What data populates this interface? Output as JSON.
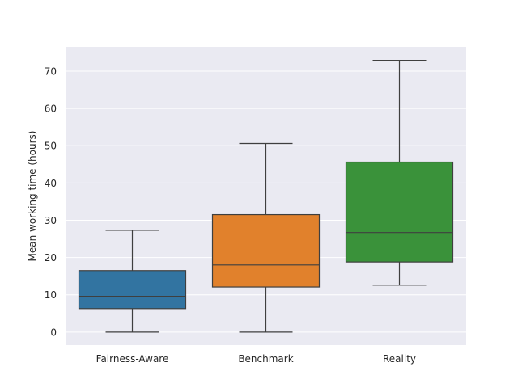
{
  "chart_data": {
    "type": "box",
    "title": "",
    "xlabel": "",
    "ylabel": "Mean working time (hours)",
    "ylim": [
      -3.5,
      76.5
    ],
    "yticks": [
      0,
      10,
      20,
      30,
      40,
      50,
      60,
      70
    ],
    "grid": true,
    "background": "#eaeaf2",
    "categories": [
      "Fairness-Aware",
      "Benchmark",
      "Reality"
    ],
    "boxes": [
      {
        "category": "Fairness-Aware",
        "whisker_low": 0,
        "q1": 6.3,
        "median": 9.6,
        "q3": 16.5,
        "whisker_high": 27.3,
        "color": "#3274a1"
      },
      {
        "category": "Benchmark",
        "whisker_low": 0,
        "q1": 12.1,
        "median": 18.0,
        "q3": 31.5,
        "whisker_high": 50.6,
        "color": "#e1812c"
      },
      {
        "category": "Reality",
        "whisker_low": 12.6,
        "q1": 18.8,
        "median": 26.7,
        "q3": 45.6,
        "whisker_high": 72.9,
        "color": "#3a923a"
      }
    ]
  }
}
